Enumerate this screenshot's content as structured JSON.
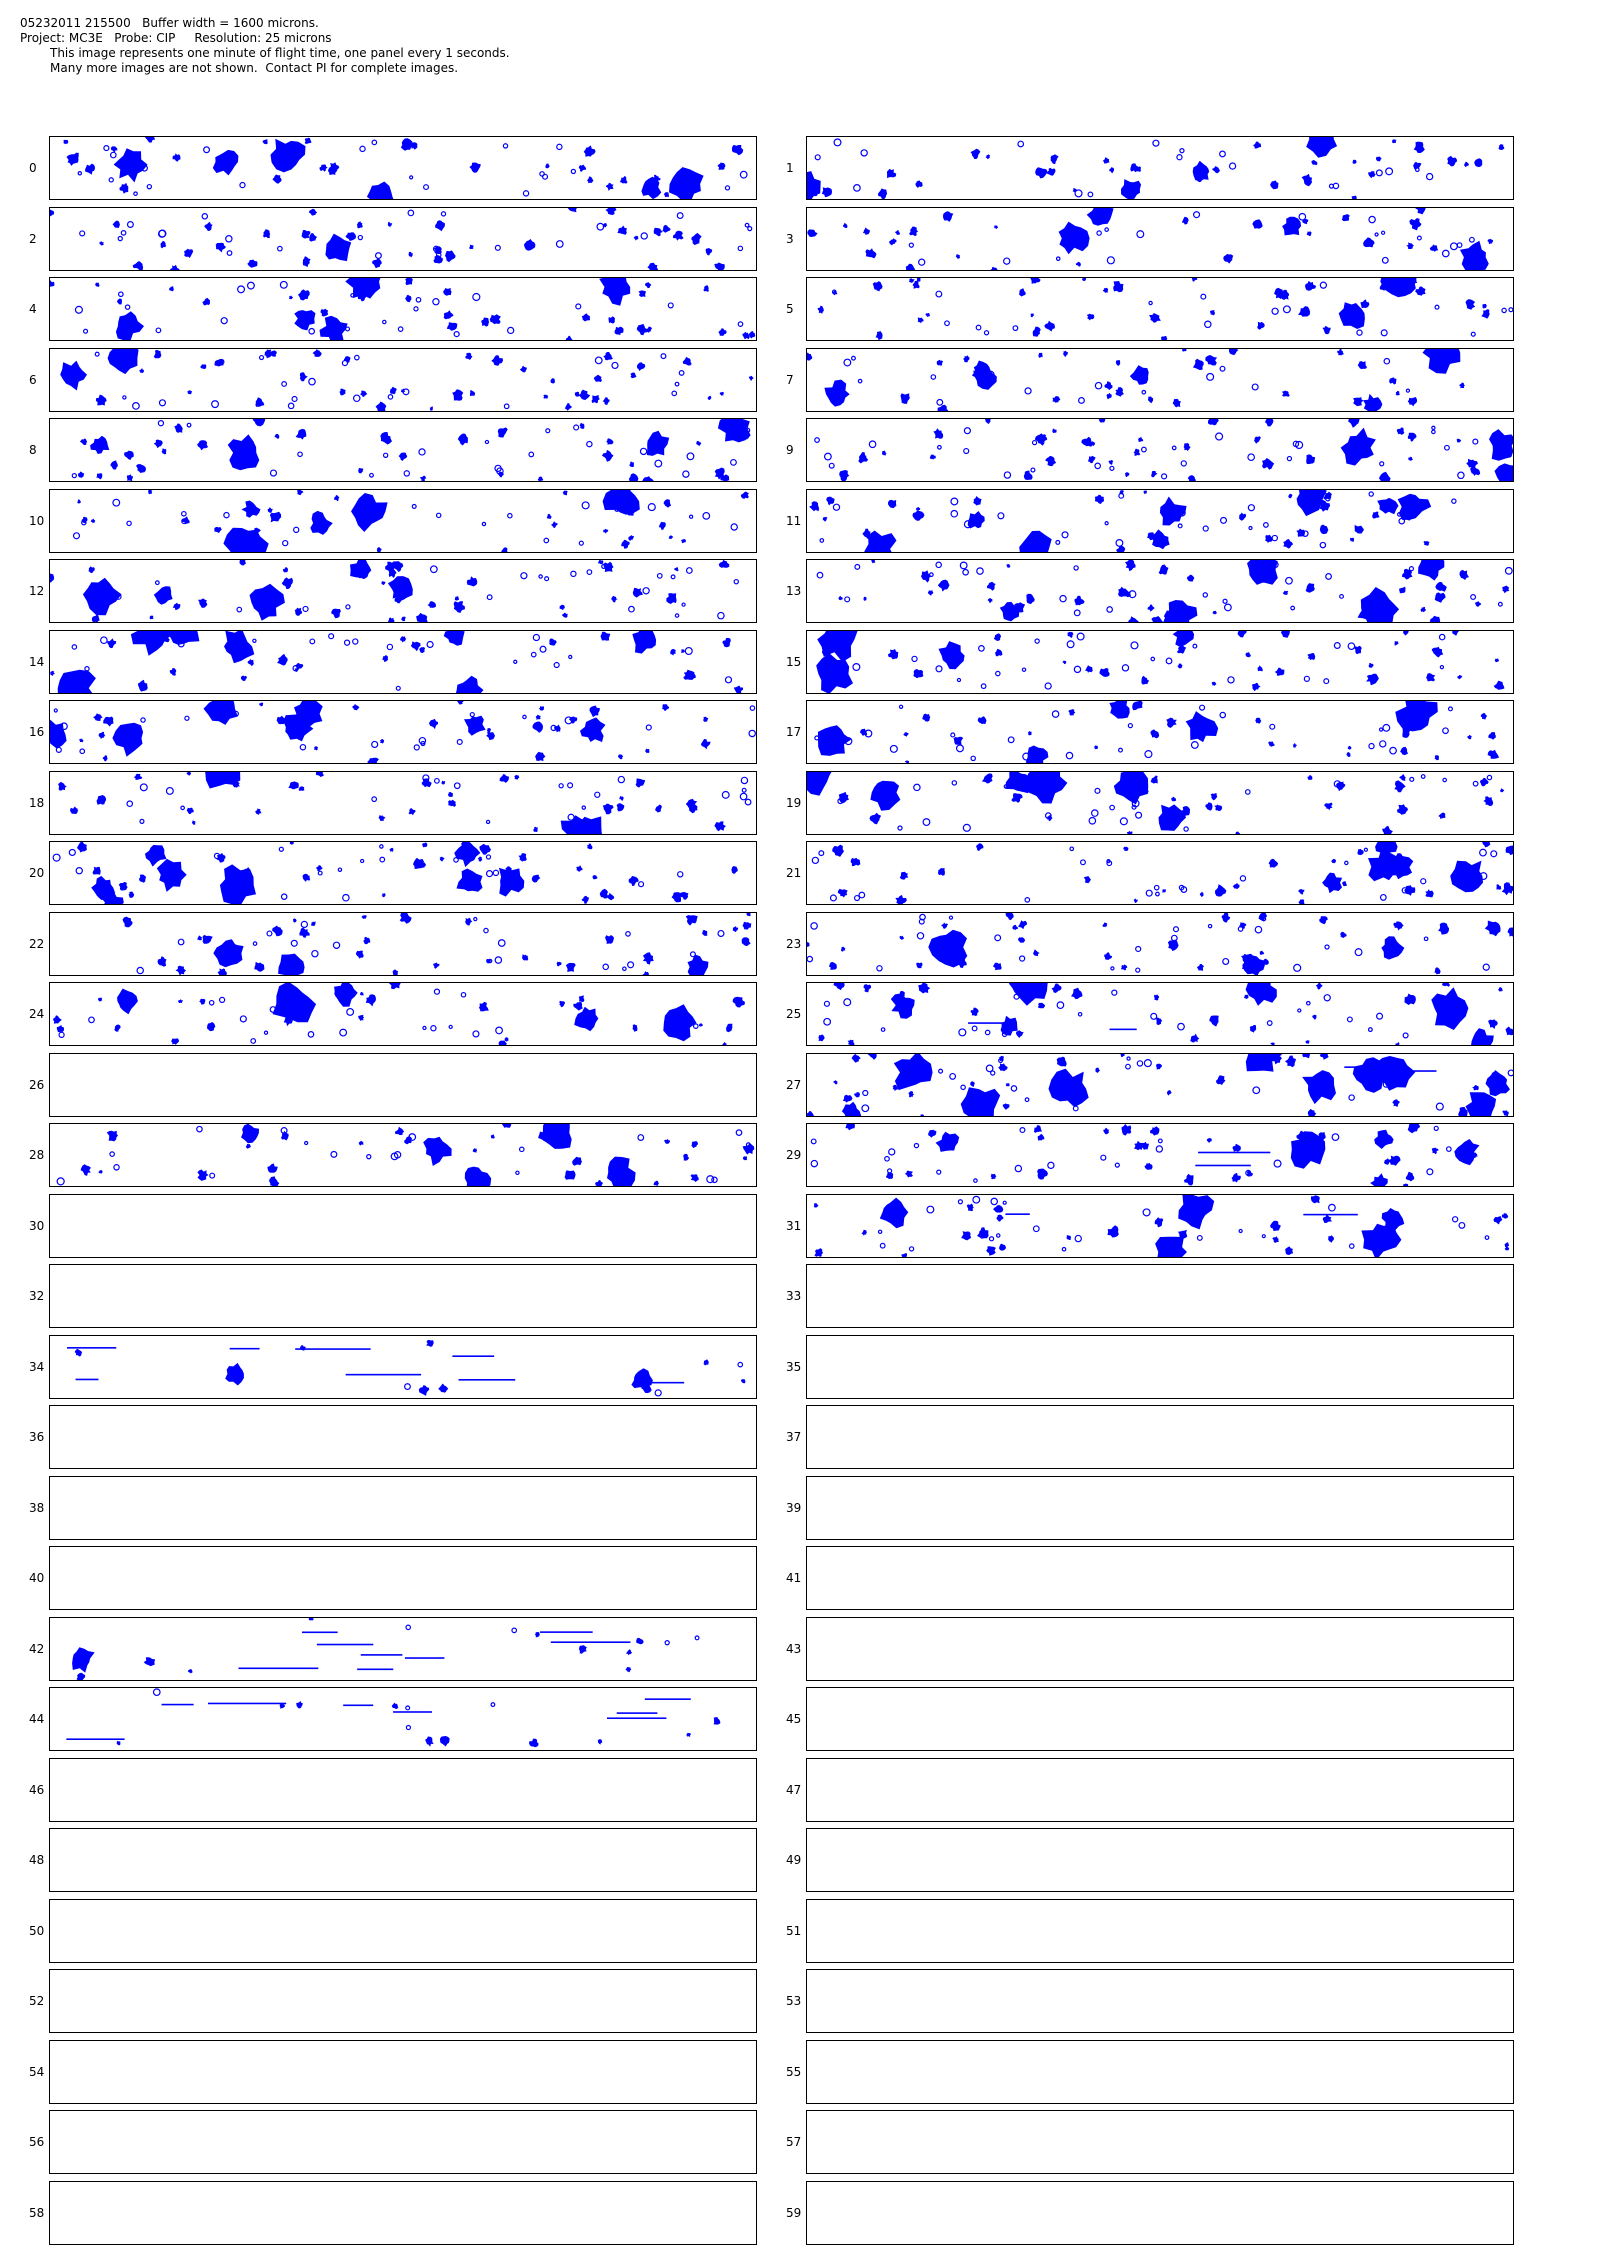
{
  "header": {
    "line1": "05232011 215500   Buffer width = 1600 microns.",
    "line2": "Project: MC3E   Probe: CIP     Resolution: 25 microns",
    "line3": "This image represents one minute of flight time, one panel every 1 seconds.",
    "line4": "Many more images are not shown.  Contact PI for complete images."
  },
  "colors": {
    "particle": "#0000ff",
    "border": "#000000"
  },
  "panels": [
    {
      "label": "0",
      "has_particles": true
    },
    {
      "label": "1",
      "has_particles": true
    },
    {
      "label": "2",
      "has_particles": true
    },
    {
      "label": "3",
      "has_particles": true
    },
    {
      "label": "4",
      "has_particles": true
    },
    {
      "label": "5",
      "has_particles": true
    },
    {
      "label": "6",
      "has_particles": true
    },
    {
      "label": "7",
      "has_particles": true
    },
    {
      "label": "8",
      "has_particles": true
    },
    {
      "label": "9",
      "has_particles": true
    },
    {
      "label": "10",
      "has_particles": true
    },
    {
      "label": "11",
      "has_particles": true
    },
    {
      "label": "12",
      "has_particles": true
    },
    {
      "label": "13",
      "has_particles": true
    },
    {
      "label": "14",
      "has_particles": true
    },
    {
      "label": "15",
      "has_particles": true
    },
    {
      "label": "16",
      "has_particles": true
    },
    {
      "label": "17",
      "has_particles": true
    },
    {
      "label": "18",
      "has_particles": true
    },
    {
      "label": "19",
      "has_particles": true
    },
    {
      "label": "20",
      "has_particles": true
    },
    {
      "label": "21",
      "has_particles": true
    },
    {
      "label": "22",
      "has_particles": true
    },
    {
      "label": "23",
      "has_particles": true
    },
    {
      "label": "24",
      "has_particles": true
    },
    {
      "label": "25",
      "has_particles": true
    },
    {
      "label": "26",
      "has_particles": false
    },
    {
      "label": "27",
      "has_particles": true
    },
    {
      "label": "28",
      "has_particles": true
    },
    {
      "label": "29",
      "has_particles": true
    },
    {
      "label": "30",
      "has_particles": false
    },
    {
      "label": "31",
      "has_particles": true
    },
    {
      "label": "32",
      "has_particles": false
    },
    {
      "label": "33",
      "has_particles": false
    },
    {
      "label": "34",
      "has_particles": true
    },
    {
      "label": "35",
      "has_particles": false
    },
    {
      "label": "36",
      "has_particles": false
    },
    {
      "label": "37",
      "has_particles": false
    },
    {
      "label": "38",
      "has_particles": false
    },
    {
      "label": "39",
      "has_particles": false
    },
    {
      "label": "40",
      "has_particles": false
    },
    {
      "label": "41",
      "has_particles": false
    },
    {
      "label": "42",
      "has_particles": true
    },
    {
      "label": "43",
      "has_particles": false
    },
    {
      "label": "44",
      "has_particles": true
    },
    {
      "label": "45",
      "has_particles": false
    },
    {
      "label": "46",
      "has_particles": false
    },
    {
      "label": "47",
      "has_particles": false
    },
    {
      "label": "48",
      "has_particles": false
    },
    {
      "label": "49",
      "has_particles": false
    },
    {
      "label": "50",
      "has_particles": false
    },
    {
      "label": "51",
      "has_particles": false
    },
    {
      "label": "52",
      "has_particles": false
    },
    {
      "label": "53",
      "has_particles": false
    },
    {
      "label": "54",
      "has_particles": false
    },
    {
      "label": "55",
      "has_particles": false
    },
    {
      "label": "56",
      "has_particles": false
    },
    {
      "label": "57",
      "has_particles": false
    },
    {
      "label": "58",
      "has_particles": false
    },
    {
      "label": "59",
      "has_particles": false
    }
  ]
}
